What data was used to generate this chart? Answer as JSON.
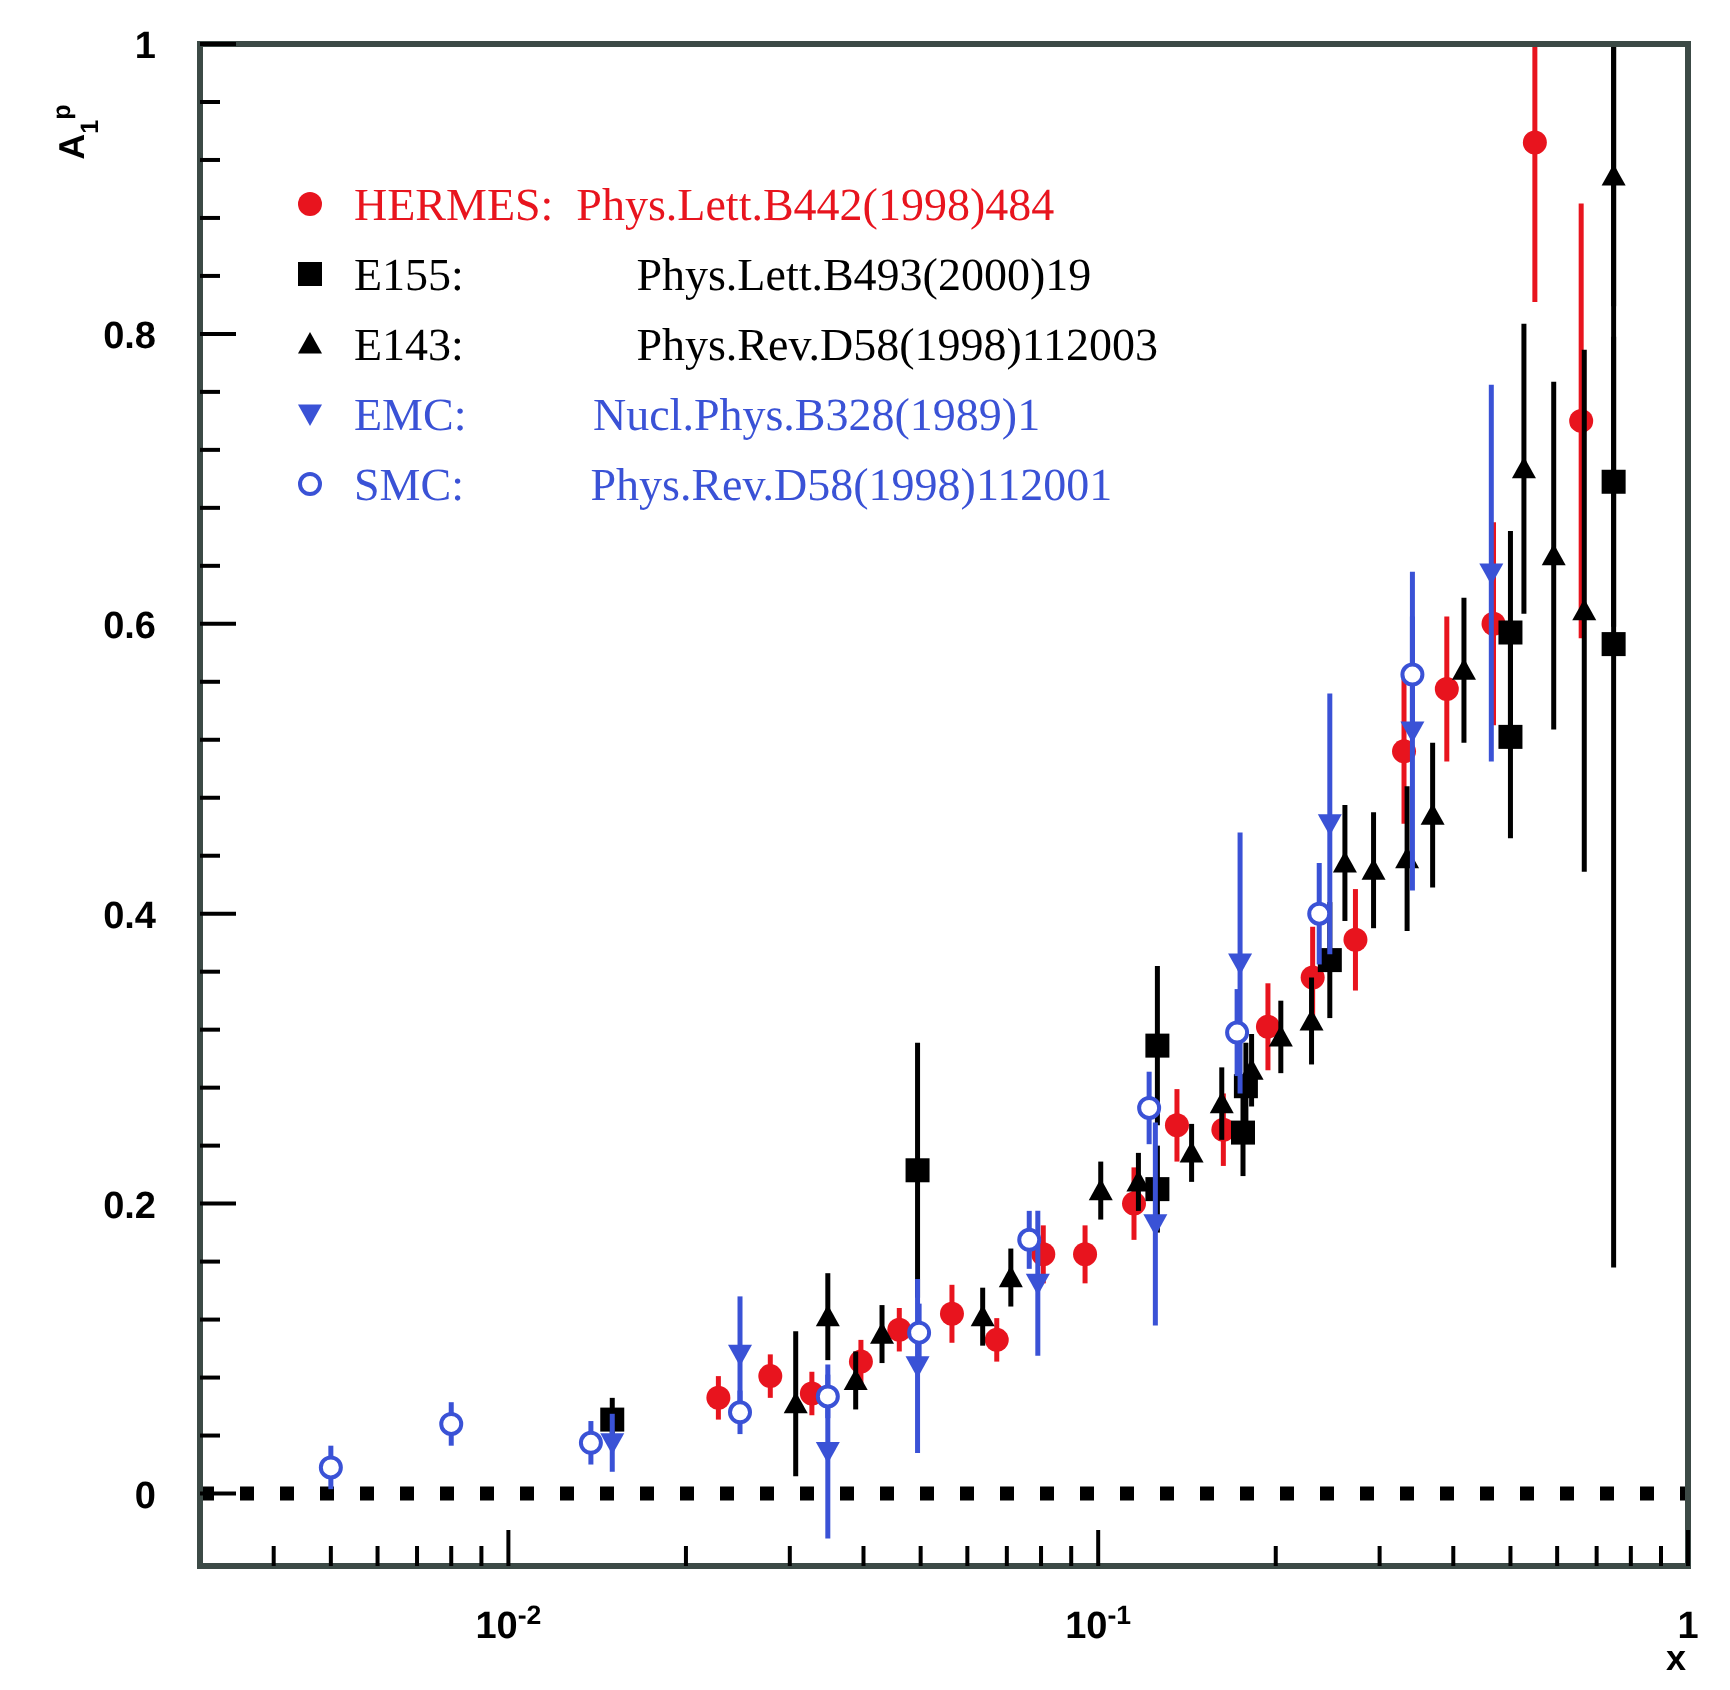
{
  "chart_data": {
    "type": "scatter",
    "xlabel": "x",
    "ylabel": "A$_{1}$$^{p}$",
    "log": "x",
    "grid": false,
    "legend": "top left",
    "xlim": [
      0.003,
      1
    ],
    "ylim": [
      -0.05,
      1
    ],
    "xticks": [
      {
        "value": 0.004,
        "label": null
      },
      {
        "value": 0.005,
        "label": null
      },
      {
        "value": 0.006,
        "label": null
      },
      {
        "value": 0.007,
        "label": null
      },
      {
        "value": 0.008,
        "label": null
      },
      {
        "value": 0.009,
        "label": null
      },
      {
        "value": 0.01,
        "label": "10$^{-2}$"
      },
      {
        "value": 0.02,
        "label": null
      },
      {
        "value": 0.03,
        "label": null
      },
      {
        "value": 0.04,
        "label": null
      },
      {
        "value": 0.05,
        "label": null
      },
      {
        "value": 0.06,
        "label": null
      },
      {
        "value": 0.07,
        "label": null
      },
      {
        "value": 0.08,
        "label": null
      },
      {
        "value": 0.09,
        "label": null
      },
      {
        "value": 0.1,
        "label": "10$^{-1}$"
      },
      {
        "value": 0.2,
        "label": null
      },
      {
        "value": 0.3,
        "label": null
      },
      {
        "value": 0.4,
        "label": null
      },
      {
        "value": 0.5,
        "label": null
      },
      {
        "value": 0.6,
        "label": null
      },
      {
        "value": 0.7,
        "label": null
      },
      {
        "value": 0.8,
        "label": null
      },
      {
        "value": 0.9,
        "label": null
      },
      1
    ],
    "yticks": [
      0,
      {
        "value": 0.04,
        "label": null
      },
      {
        "value": 0.08,
        "label": null
      },
      {
        "value": 0.12,
        "label": null
      },
      {
        "value": 0.16,
        "label": null
      },
      0.2,
      {
        "value": 0.24,
        "label": null
      },
      {
        "value": 0.28,
        "label": null
      },
      {
        "value": 0.32,
        "label": null
      },
      {
        "value": 0.36,
        "label": null
      },
      0.4,
      {
        "value": 0.44,
        "label": null
      },
      {
        "value": 0.48,
        "label": null
      },
      {
        "value": 0.52,
        "label": null
      },
      {
        "value": 0.56,
        "label": null
      },
      0.6,
      {
        "value": 0.64,
        "label": null
      },
      {
        "value": 0.68,
        "label": null
      },
      {
        "value": 0.72,
        "label": null
      },
      {
        "value": 0.76,
        "label": null
      },
      0.8,
      {
        "value": 0.84,
        "label": null
      },
      {
        "value": 0.88,
        "label": null
      },
      {
        "value": 0.92,
        "label": null
      },
      {
        "value": 0.96,
        "label": null
      },
      1
    ],
    "ref_lines": [
      {
        "axis": "y",
        "value": 0,
        "color": "#000000",
        "line_style": "dotted"
      }
    ],
    "series": [
      {
        "name": "HERMES:  Phys.Lett.B442(1998)484",
        "color": "#e8141e",
        "marker": "circle",
        "x": [
          0.0227,
          0.0278,
          0.0327,
          0.0396,
          0.046,
          0.0565,
          0.0673,
          0.0807,
          0.095,
          0.115,
          0.136,
          0.163,
          0.194,
          0.231,
          0.273,
          0.33,
          0.39,
          0.468,
          0.55,
          0.659
        ],
        "values": [
          0.066,
          0.081,
          0.069,
          0.091,
          0.113,
          0.124,
          0.106,
          0.165,
          0.165,
          0.2,
          0.254,
          0.251,
          0.322,
          0.356,
          0.382,
          0.512,
          0.555,
          0.6,
          0.932,
          0.74
        ],
        "errors": [
          0.015,
          0.015,
          0.015,
          0.015,
          0.015,
          0.02,
          0.015,
          0.02,
          0.02,
          0.025,
          0.025,
          0.025,
          0.03,
          0.035,
          0.035,
          0.05,
          0.05,
          0.07,
          [
            0.822,
            1
          ],
          0.15
        ]
      },
      {
        "name": "E155:               Phys.Lett.B493(2000)19",
        "color": "#000000",
        "marker": "square",
        "x": [
          0.015,
          0.0494,
          0.126,
          0.126,
          0.176,
          0.178,
          0.247,
          0.5,
          0.5,
          0.748,
          0.748
        ],
        "values": [
          0.051,
          0.223,
          0.309,
          0.21,
          0.249,
          0.281,
          0.368,
          0.594,
          0.522,
          0.698,
          0.586
        ],
        "errors": [
          0.015,
          0.088,
          0.055,
          0.03,
          0.03,
          0.03,
          0.04,
          0.07,
          0.07,
          0.1,
          [
            0.156,
            1
          ]
        ]
      },
      {
        "name": "E143:               Phys.Rev.D58(1998)112003",
        "color": "#000000",
        "marker": "triangle",
        "x": [
          0.0307,
          0.0348,
          0.0388,
          0.043,
          0.0637,
          0.0711,
          0.101,
          0.117,
          0.144,
          0.162,
          0.182,
          0.204,
          0.23,
          0.262,
          0.293,
          0.334,
          0.369,
          0.417,
          0.527,
          0.592,
          0.667,
          0.748
        ],
        "values": [
          0.062,
          0.122,
          0.078,
          0.11,
          0.122,
          0.149,
          0.209,
          0.215,
          0.235,
          0.269,
          0.292,
          0.315,
          0.326,
          0.435,
          0.43,
          0.438,
          0.468,
          0.568,
          0.707,
          0.647,
          0.609,
          0.909
        ],
        "errors": [
          0.05,
          0.03,
          0.02,
          0.02,
          0.02,
          0.02,
          0.02,
          0.02,
          0.02,
          0.025,
          0.025,
          0.025,
          0.03,
          0.04,
          0.04,
          0.05,
          0.05,
          0.05,
          0.1,
          0.12,
          0.18,
          0.09
        ]
      },
      {
        "name": "EMC:           Nucl.Phys.B328(1989)1",
        "color": "#3a52d6",
        "marker": "triangle-down",
        "x": [
          0.015,
          0.0247,
          0.0348,
          0.0494,
          0.079,
          0.125,
          0.174,
          0.247,
          0.341,
          0.464
        ],
        "values": [
          0.035,
          0.096,
          0.029,
          0.088,
          0.145,
          0.186,
          0.366,
          0.462,
          0.526,
          0.635
        ],
        "errors": [
          0.02,
          0.04,
          0.06,
          0.06,
          0.05,
          0.07,
          0.09,
          0.09,
          0.11,
          0.13
        ]
      },
      {
        "name": "SMC:           Phys.Rev.D58(1998)112001",
        "color": "#3a52d6",
        "marker": "circle-open",
        "x": [
          0.005,
          0.008,
          0.0138,
          0.0247,
          0.0348,
          0.0497,
          0.0764,
          0.122,
          0.172,
          0.237,
          0.341
        ],
        "values": [
          0.018,
          0.048,
          0.035,
          0.056,
          0.067,
          0.111,
          0.175,
          0.266,
          0.318,
          0.4,
          0.565
        ],
        "errors": [
          0.015,
          0.015,
          0.015,
          0.015,
          0.015,
          0.02,
          0.02,
          0.025,
          0.03,
          0.035,
          0.04
        ]
      }
    ]
  }
}
